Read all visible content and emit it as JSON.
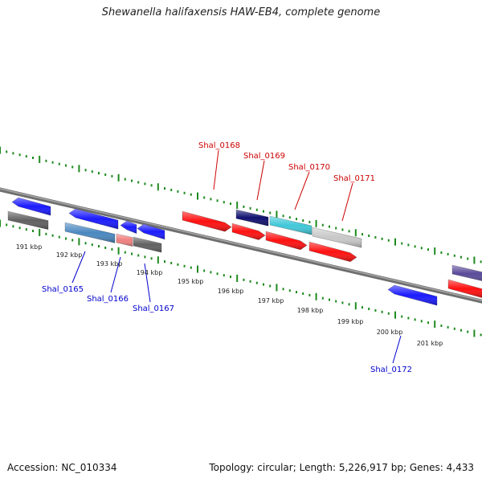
{
  "title": "Shewanella halifaxensis HAW-EB4, complete genome",
  "footer": {
    "accession_label": "Accession:",
    "accession": "NC_010334",
    "topology_label": "Topology:",
    "topology": "circular",
    "length_label": "Length:",
    "length": "5,226,917 bp",
    "genes_label": "Genes:",
    "genes": "4,433"
  },
  "colors": {
    "backbone": "#8a8a8a",
    "tick": "#1d8a1d",
    "forward_label": "#cc0000",
    "reverse_label": "#0000cc",
    "red": "#ff1010",
    "blue": "#1a1aff",
    "steelblue": "#4a88c0",
    "pink": "#f08080",
    "gray": "#606060",
    "navy": "#101070",
    "cyan": "#40c8d8",
    "lightgray": "#c8c8c8",
    "slate": "#5a4a9a"
  },
  "kbp_labels": [
    "191 kbp",
    "192 kbp",
    "193 kbp",
    "194 kbp",
    "195 kbp",
    "196 kbp",
    "197 kbp",
    "198 kbp",
    "199 kbp",
    "200 kbp",
    "201 kbp"
  ],
  "gene_labels": {
    "shal_0165": "Shal_0165",
    "shal_0166": "Shal_0166",
    "shal_0167": "Shal_0167",
    "shal_0168": "Shal_0168",
    "shal_0169": "Shal_0169",
    "shal_0170": "Shal_0170",
    "shal_0171": "Shal_0171",
    "shal_0172": "Shal_0172"
  }
}
